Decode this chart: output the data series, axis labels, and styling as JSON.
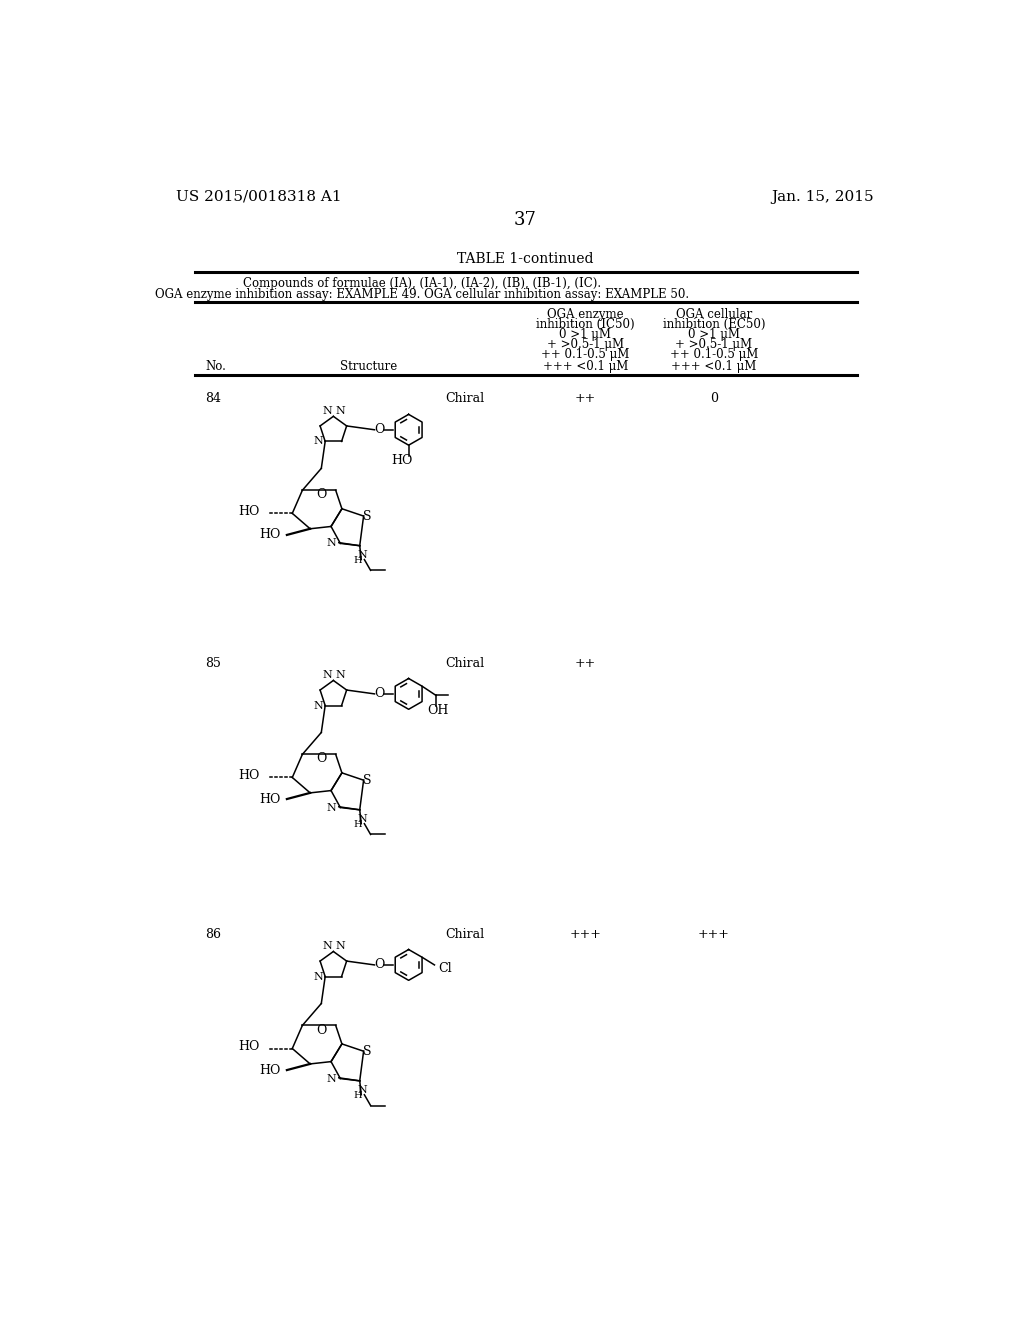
{
  "bg_color": "#ffffff",
  "header_left": "US 2015/0018318 A1",
  "header_right": "Jan. 15, 2015",
  "page_number": "37",
  "table_title": "TABLE 1-continued",
  "table_subtitle1": "Compounds of formulae (IA), (IA-1), (IA-2), (IB), (IB-1), (IC).",
  "table_subtitle2": "OGA enzyme inhibition assay: EXAMPLE 49. OGA cellular inhibition assay: EXAMPLE 50.",
  "col1_header": "No.",
  "col2_header": "Structure",
  "col3_header_line1": "OGA enzyme",
  "col3_header_line2": "inhibition (IC50)",
  "col3_line1": "0 >1 μM",
  "col3_line2": "+ >0.5-1 μM",
  "col3_line3": "++ 0.1-0.5 μM",
  "col3_line4": "+++ <0.1 μM",
  "col4_header_line1": "OGA cellular",
  "col4_header_line2": "inhibition (EC50)",
  "col4_line1": "0 >1 μM",
  "col4_line2": "+ >0.5-1 μM",
  "col4_line3": "++ 0.1-0.5 μM",
  "col4_line4": "+++ <0.1 μM",
  "row84_no": "84",
  "row84_chiral": "Chiral",
  "row84_oga_enzyme": "++",
  "row84_oga_cell": "0",
  "row85_no": "85",
  "row85_chiral": "Chiral",
  "row85_oga_enzyme": "++",
  "row85_oga_cell": "",
  "row86_no": "86",
  "row86_chiral": "Chiral",
  "row86_oga_enzyme": "+++",
  "row86_oga_cell": "+++"
}
